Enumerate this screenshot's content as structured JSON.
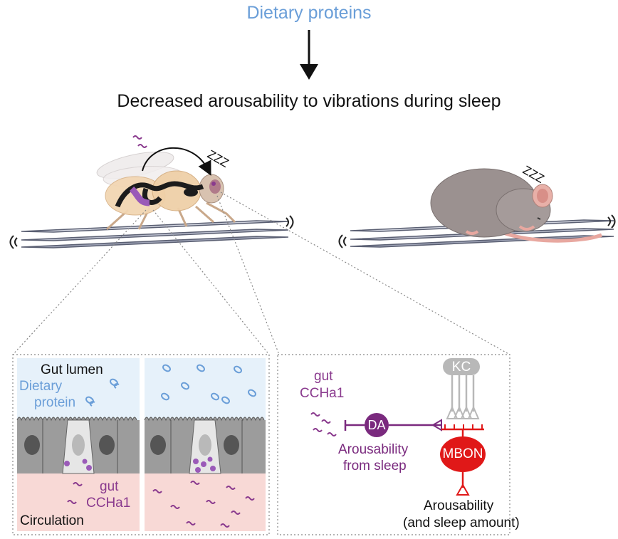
{
  "header": {
    "input_label": "Dietary proteins",
    "outcome_label": "Decreased arousability to vibrations during sleep"
  },
  "sleep_marks": {
    "fly": "ZZZ",
    "mouse": "ZZZ"
  },
  "gut_panel": {
    "lumen_label": "Gut lumen",
    "protein_label_line1": "Dietary",
    "protein_label_line2": "protein",
    "peptide_label_line1": "gut",
    "peptide_label_line2": "CCHa1",
    "circulation_label": "Circulation"
  },
  "brain_panel": {
    "peptide_label_line1": "gut",
    "peptide_label_line2": "CCHa1",
    "da_label": "DA",
    "da_effect_line1": "Arousability",
    "da_effect_line2": "from sleep",
    "kc_label": "KC",
    "mbon_label": "MBON",
    "mbon_effect_line1": "Arousability",
    "mbon_effect_line2": "(and sleep amount)"
  },
  "colors": {
    "protein_blue": "#6a9ed8",
    "peptide_purple": "#8a3a8e",
    "da_purple": "#7a2a7e",
    "mbon_red": "#e01818",
    "kc_gray": "#b8b8b8",
    "lumen_bg": "#e6f1fa",
    "circulation_bg": "#f8d9d6"
  }
}
